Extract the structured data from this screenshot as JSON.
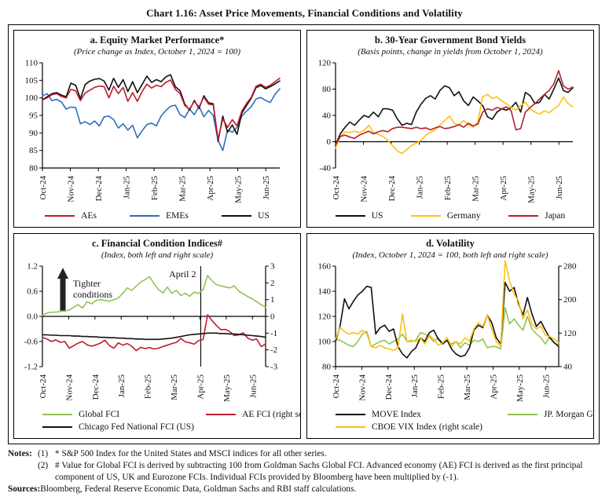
{
  "page_title": "Chart 1.16: Asset Price Movements, Financial Conditions and Volatility",
  "colors": {
    "red": "#c01b2d",
    "blue": "#2c6fbb",
    "black": "#111111",
    "yellow": "#ffc010",
    "green": "#92c353",
    "japan_red": "#b2222a"
  },
  "chart_data": [
    {
      "id": "a",
      "type": "line",
      "title": "a. Equity Market Performance*",
      "subtitle": "(Price change as Index, October 1, 2024 = 100)",
      "x_categories": [
        "Oct-24",
        "Nov-24",
        "Dec-24",
        "Jan-25",
        "Feb-25",
        "Mar-25",
        "Apr-25",
        "May-25",
        "Jun-25"
      ],
      "x_max": 8.5,
      "left_axis": {
        "min": 80,
        "max": 110,
        "ticks": [
          {
            "v": 110,
            "label": "110"
          },
          {
            "v": 105,
            "label": "105"
          },
          {
            "v": 100,
            "label": "100"
          },
          {
            "v": 95,
            "label": "95"
          },
          {
            "v": 90,
            "label": "90"
          },
          {
            "v": 85,
            "label": "85"
          },
          {
            "v": 80,
            "label": "80"
          }
        ]
      },
      "right_axis": null,
      "x_axis_at": 80,
      "series": [
        {
          "name": "EMEs",
          "color": "#2c6fbb",
          "scale": "left",
          "values": [
            100.6,
            101.2,
            99.2,
            99.6,
            98.8,
            96.8,
            97.4,
            97.2,
            92.6,
            93.2,
            92.4,
            93.4,
            92.0,
            94.6,
            94.8,
            93.8,
            91.4,
            92.6,
            90.8,
            92.2,
            88.6,
            90.6,
            92.4,
            92.8,
            92.0,
            94.8,
            96.4,
            97.6,
            97.9,
            95.2,
            94.4,
            96.8,
            95.2,
            97.6,
            94.6,
            96.4,
            95.0,
            87.9,
            85.0,
            90.8,
            90.2,
            91.6,
            94.8,
            96.2,
            97.5,
            99.7,
            100.1,
            99.3,
            98.7,
            101.0,
            102.6
          ]
        },
        {
          "name": "US",
          "color": "#111111",
          "scale": "left",
          "values": [
            99.5,
            100.3,
            101.2,
            101.5,
            100.8,
            100.3,
            104.2,
            103.6,
            99.8,
            103.8,
            104.8,
            105.3,
            105.5,
            104.8,
            102.2,
            105.6,
            103.0,
            105.2,
            101.8,
            104.6,
            101.5,
            103.8,
            106.2,
            104.4,
            105.2,
            104.6,
            106.0,
            106.6,
            103.2,
            102.0,
            98.2,
            96.5,
            99.3,
            97.0,
            100.6,
            98.6,
            98.3,
            87.6,
            94.8,
            90.2,
            92.3,
            89.6,
            95.6,
            97.8,
            99.9,
            102.9,
            103.5,
            102.6,
            103.2,
            104.0,
            104.8
          ]
        },
        {
          "name": "AEs",
          "color": "#c01b2d",
          "scale": "left",
          "values": [
            99.4,
            100.0,
            100.9,
            101.2,
            100.4,
            100.0,
            102.4,
            102.0,
            99.2,
            101.4,
            102.2,
            103.0,
            103.4,
            103.2,
            100.0,
            103.3,
            101.2,
            103.0,
            99.0,
            101.5,
            99.0,
            101.8,
            103.9,
            102.8,
            103.6,
            103.2,
            104.4,
            105.1,
            102.4,
            101.2,
            97.8,
            96.8,
            99.0,
            97.4,
            100.2,
            98.2,
            98.0,
            88.2,
            94.0,
            91.6,
            93.8,
            92.0,
            96.2,
            98.4,
            100.2,
            103.3,
            103.9,
            103.0,
            103.6,
            104.6,
            105.6
          ]
        }
      ],
      "legend_rows": [
        [
          {
            "label": "AEs",
            "color": "#c01b2d"
          },
          {
            "label": "EMEs",
            "color": "#2c6fbb"
          },
          {
            "label": "US",
            "color": "#111111"
          }
        ]
      ]
    },
    {
      "id": "b",
      "type": "line",
      "title": "b. 30-Year Government Bond Yields",
      "subtitle": "(Basis points, change in yields from October 1, 2024)",
      "x_categories": [
        "Oct-24",
        "Nov-24",
        "Dec-24",
        "Jan-25",
        "Feb-25",
        "Mar-25",
        "Apr-25",
        "May-25",
        "Jun-25"
      ],
      "x_max": 8.5,
      "left_axis": {
        "min": -40,
        "max": 120,
        "ticks": [
          {
            "v": 120,
            "label": "120"
          },
          {
            "v": 80,
            "label": "80"
          },
          {
            "v": 40,
            "label": "40"
          },
          {
            "v": 0,
            "label": "0"
          },
          {
            "v": -40,
            "label": "-40"
          }
        ]
      },
      "right_axis": null,
      "x_axis_at": 0,
      "series": [
        {
          "name": "US",
          "color": "#111111",
          "scale": "left",
          "values": [
            -5,
            12,
            22,
            30,
            25,
            33,
            40,
            37,
            45,
            38,
            50,
            50,
            48,
            35,
            25,
            28,
            26,
            45,
            57,
            66,
            70,
            65,
            78,
            85,
            82,
            70,
            76,
            62,
            55,
            68,
            62,
            55,
            38,
            34,
            45,
            50,
            48,
            52,
            60,
            45,
            75,
            70,
            58,
            60,
            72,
            65,
            80,
            97,
            78,
            75,
            82
          ]
        },
        {
          "name": "Germany",
          "color": "#ffc010",
          "scale": "left",
          "values": [
            -10,
            8,
            15,
            14,
            16,
            14,
            17,
            25,
            14,
            11,
            8,
            2,
            -6,
            -14,
            -18,
            -12,
            -6,
            -2,
            2,
            10,
            14,
            18,
            25,
            32,
            39,
            28,
            25,
            32,
            26,
            22,
            30,
            68,
            72,
            66,
            68,
            62,
            58,
            52,
            48,
            55,
            60,
            50,
            45,
            42,
            47,
            44,
            50,
            55,
            68,
            58,
            53
          ]
        },
        {
          "name": "Japan",
          "color": "#b2222a",
          "scale": "left",
          "values": [
            -5,
            8,
            10,
            7,
            5,
            10,
            13,
            16,
            12,
            15,
            17,
            15,
            20,
            22,
            22,
            21,
            20,
            22,
            20,
            21,
            18,
            21,
            23,
            20,
            21,
            23,
            26,
            22,
            28,
            24,
            27,
            45,
            50,
            48,
            52,
            50,
            53,
            47,
            18,
            20,
            45,
            52,
            58,
            65,
            72,
            78,
            88,
            108,
            85,
            80,
            83
          ]
        }
      ],
      "legend_rows": [
        [
          {
            "label": "US",
            "color": "#111111"
          },
          {
            "label": "Germany",
            "color": "#ffc010"
          },
          {
            "label": "Japan",
            "color": "#b2222a"
          }
        ]
      ]
    },
    {
      "id": "c",
      "type": "line",
      "title": "c. Financial Condition Indices#",
      "subtitle": "(Index, both left and right scale)",
      "x_categories": [
        "Oct-24",
        "Nov-24",
        "Dec-24",
        "Jan-25",
        "Feb-25",
        "Mar-25",
        "Apr-25",
        "May-25",
        "Jun-25"
      ],
      "x_max": 8.5,
      "left_axis": {
        "min": -1.2,
        "max": 1.2,
        "ticks": [
          {
            "v": 1.2,
            "label": "1.2"
          },
          {
            "v": 0.6,
            "label": "0.6"
          },
          {
            "v": 0.0,
            "label": "0.0"
          },
          {
            "v": -0.6,
            "label": "-0.6"
          },
          {
            "v": -1.2,
            "label": "-1.2"
          }
        ]
      },
      "right_axis": {
        "min": -3,
        "max": 3,
        "ticks": [
          {
            "v": 3,
            "label": "3"
          },
          {
            "v": 2,
            "label": "2"
          },
          {
            "v": 1,
            "label": "1"
          },
          {
            "v": 0,
            "label": "0"
          },
          {
            "v": -1,
            "label": "-1"
          },
          {
            "v": -2,
            "label": "-2"
          },
          {
            "v": -3,
            "label": "-3"
          }
        ]
      },
      "x_axis_at": 0,
      "annotation_vline": {
        "at_month": 6.03,
        "label": "April 2"
      },
      "annotation_arrow": {
        "line1": "Tighter",
        "line2": "conditions"
      },
      "series": [
        {
          "name": "Global FCI",
          "color": "#92c353",
          "scale": "left",
          "values": [
            0.02,
            0.08,
            0.1,
            0.1,
            0.12,
            0.13,
            0.15,
            0.22,
            0.28,
            0.2,
            0.35,
            0.3,
            0.38,
            0.4,
            0.38,
            0.36,
            0.4,
            0.44,
            0.55,
            0.68,
            0.62,
            0.72,
            0.82,
            0.88,
            0.95,
            0.78,
            0.64,
            0.56,
            0.7,
            0.55,
            0.62,
            0.5,
            0.55,
            0.48,
            0.58,
            0.55,
            0.64,
            0.98,
            0.85,
            0.76,
            0.73,
            0.7,
            0.68,
            0.73,
            0.6,
            0.54,
            0.47,
            0.42,
            0.35,
            0.28,
            0.22
          ]
        },
        {
          "name": "AE FCI (right scale)",
          "color": "#c01b2d",
          "scale": "right",
          "values": [
            -1.25,
            -1.35,
            -1.5,
            -1.4,
            -1.55,
            -1.5,
            -1.9,
            -1.75,
            -1.6,
            -1.5,
            -1.7,
            -1.78,
            -1.7,
            -1.6,
            -1.42,
            -1.75,
            -1.9,
            -1.58,
            -1.72,
            -1.62,
            -1.78,
            -2.05,
            -1.85,
            -1.92,
            -1.86,
            -1.95,
            -1.9,
            -1.8,
            -1.72,
            -1.62,
            -1.55,
            -1.32,
            -1.52,
            -1.58,
            -1.66,
            -1.45,
            -1.38,
            0.1,
            -0.25,
            -0.55,
            -0.8,
            -0.78,
            -0.92,
            -1.15,
            -1.1,
            -0.98,
            -1.3,
            -1.42,
            -1.35,
            -1.8,
            -1.65
          ]
        },
        {
          "name": "Chicago Fed National FCI (US)",
          "color": "#111111",
          "scale": "left",
          "values": [
            -0.44,
            -0.44,
            -0.45,
            -0.45,
            -0.46,
            -0.46,
            -0.46,
            -0.47,
            -0.47,
            -0.48,
            -0.48,
            -0.49,
            -0.49,
            -0.5,
            -0.5,
            -0.51,
            -0.51,
            -0.52,
            -0.52,
            -0.53,
            -0.53,
            -0.54,
            -0.54,
            -0.55,
            -0.55,
            -0.55,
            -0.55,
            -0.54,
            -0.53,
            -0.52,
            -0.5,
            -0.48,
            -0.46,
            -0.44,
            -0.43,
            -0.42,
            -0.41,
            -0.4,
            -0.4,
            -0.4,
            -0.41,
            -0.41,
            -0.42,
            -0.42,
            -0.43,
            -0.44,
            -0.45,
            -0.46,
            -0.47,
            -0.48,
            -0.5
          ]
        }
      ],
      "legend_rows": [
        [
          {
            "label": "Global FCI",
            "color": "#92c353"
          },
          {
            "label": "AE FCI (right scale)",
            "color": "#c01b2d"
          }
        ],
        [
          {
            "label": "Chicago Fed National FCI (US)",
            "color": "#111111"
          }
        ]
      ]
    },
    {
      "id": "d",
      "type": "line",
      "title": "d. Volatility",
      "subtitle": "(Index, October 1, 2024 = 100, both left and right scale)",
      "x_categories": [
        "Oct-24",
        "Nov-24",
        "Dec-24",
        "Jan-25",
        "Feb-25",
        "Mar-25",
        "Apr-25",
        "May-25",
        "Jun-25"
      ],
      "x_max": 8.5,
      "left_axis": {
        "min": 80,
        "max": 160,
        "ticks": [
          {
            "v": 160,
            "label": "160"
          },
          {
            "v": 140,
            "label": "140"
          },
          {
            "v": 120,
            "label": "120"
          },
          {
            "v": 100,
            "label": "100"
          },
          {
            "v": 80,
            "label": "80"
          }
        ]
      },
      "right_axis": {
        "min": 40,
        "max": 280,
        "ticks": [
          {
            "v": 280,
            "label": "280"
          },
          {
            "v": 200,
            "label": "200"
          },
          {
            "v": 120,
            "label": "120"
          },
          {
            "v": 40,
            "label": "40"
          }
        ]
      },
      "x_axis_at": 80,
      "series": [
        {
          "name": "JP. Morgan Global FX Volatility",
          "color": "#92c353",
          "scale": "left",
          "values": [
            102,
            101,
            99,
            97,
            96,
            100,
            106,
            108,
            96,
            98,
            100,
            101,
            98,
            100,
            102,
            106,
            100,
            100,
            101,
            107,
            106,
            104,
            100,
            103,
            99,
            101,
            98,
            100,
            95,
            99,
            97,
            101,
            100,
            102,
            95,
            96,
            96,
            94,
            127,
            114,
            118,
            113,
            109,
            120,
            110,
            106,
            103,
            98,
            104,
            99,
            97
          ]
        },
        {
          "name": "MOVE Index",
          "color": "#111111",
          "scale": "left",
          "values": [
            100,
            112,
            134,
            126,
            132,
            137,
            140,
            144,
            143,
            106,
            111,
            113,
            108,
            110,
            96,
            90,
            87,
            92,
            95,
            103,
            100,
            107,
            109,
            102,
            98,
            101,
            94,
            90,
            88,
            89,
            95,
            109,
            113,
            111,
            121,
            115,
            103,
            98,
            147,
            140,
            143,
            130,
            121,
            135,
            122,
            112,
            116,
            109,
            103,
            99,
            96
          ]
        },
        {
          "name": "CBOE VIX Index (right scale)",
          "color": "#ffc010",
          "scale": "right",
          "values": [
            106,
            133,
            124,
            118,
            121,
            118,
            127,
            118,
            88,
            85,
            91,
            85,
            82,
            79,
            85,
            166,
            100,
            103,
            100,
            109,
            94,
            115,
            106,
            91,
            97,
            109,
            88,
            100,
            94,
            109,
            100,
            130,
            145,
            136,
            163,
            130,
            100,
            88,
            300,
            244,
            214,
            196,
            154,
            175,
            142,
            130,
            136,
            115,
            112,
            106,
            97
          ]
        }
      ],
      "legend_rows": [
        [
          {
            "label": "MOVE Index",
            "color": "#111111"
          },
          {
            "label": "JP. Morgan Global FX Volatility",
            "color": "#92c353"
          }
        ],
        [
          {
            "label": "CBOE VIX Index (right scale)",
            "color": "#ffc010"
          }
        ]
      ]
    }
  ],
  "notes": {
    "label": "Notes:",
    "items": [
      {
        "num": "(1)",
        "text": "* S&P 500 Index for the United States and MSCI indices for all other series."
      },
      {
        "num": "(2)",
        "text": "# Value for Global FCI is derived by subtracting 100 from Goldman Sachs Global FCI. Advanced economy (AE) FCI is derived as the first principal component of US, UK and Eurozone FCIs. Individual FCIs provided by Bloomberg have been multiplied by (-1)."
      }
    ],
    "sources_label": "Sources:",
    "sources_text": "Bloomberg, Federal Reserve Economic Data, Goldman Sachs and RBI staff calculations."
  }
}
